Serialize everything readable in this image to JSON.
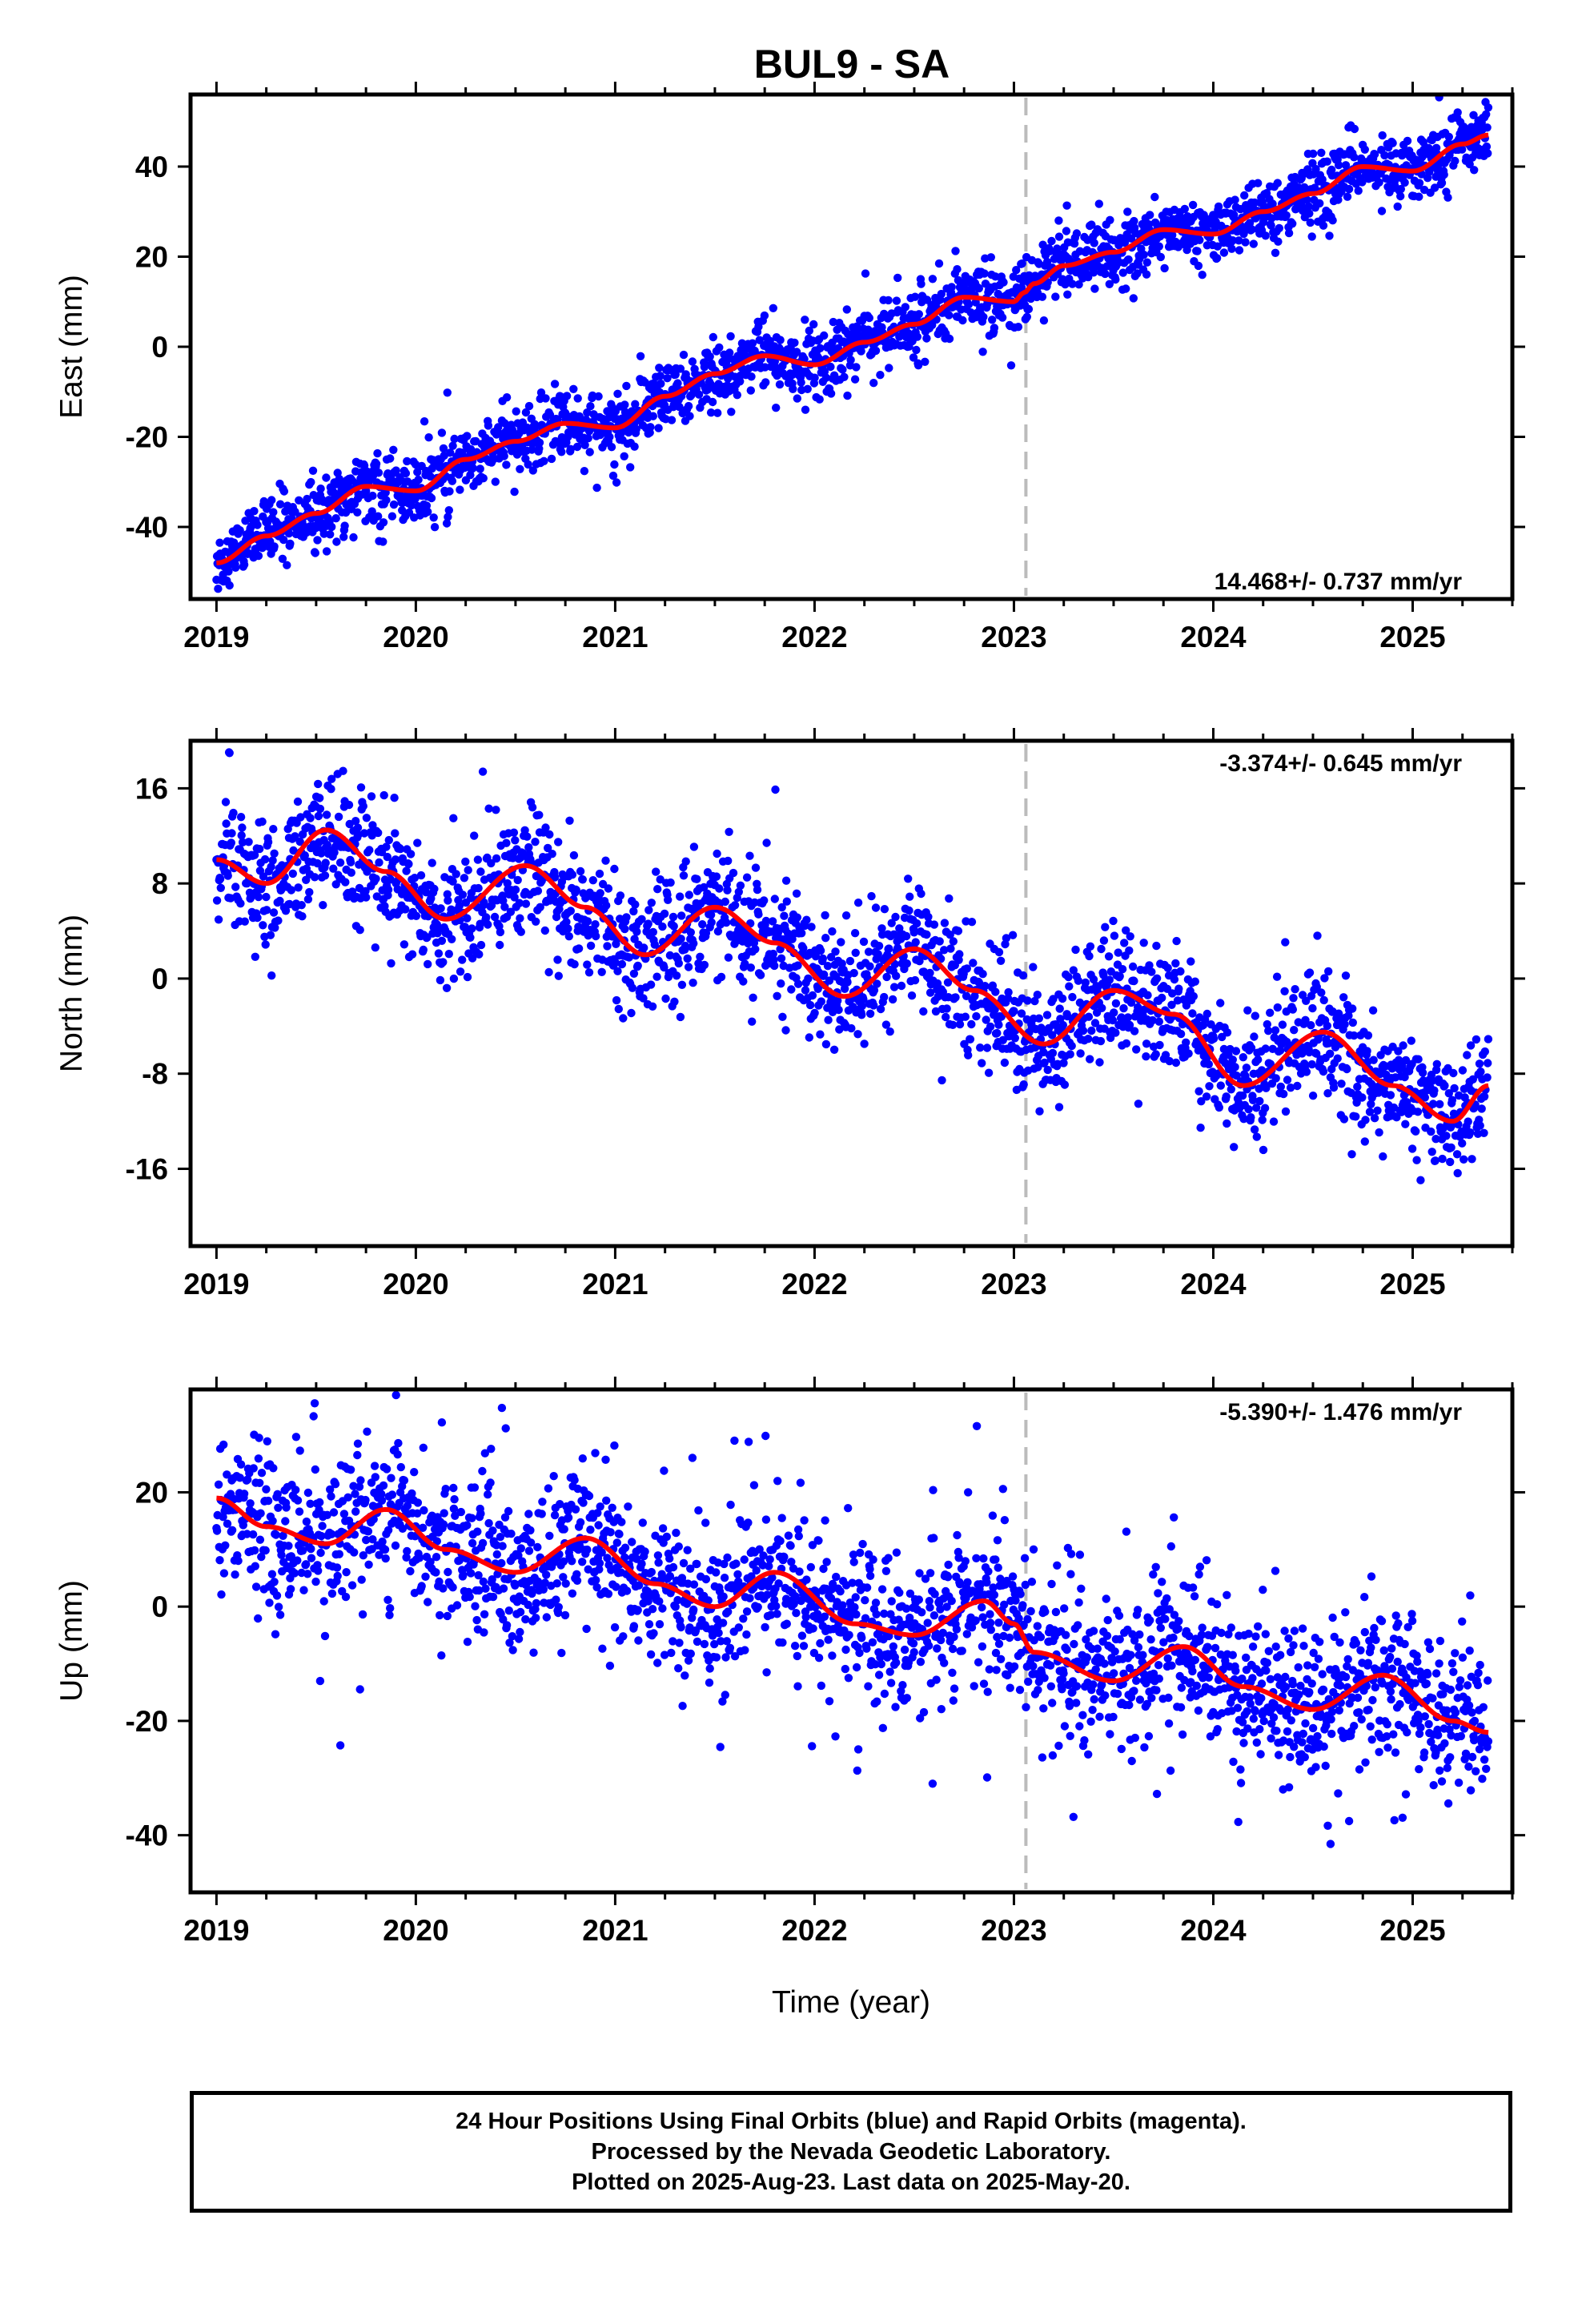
{
  "title": "BUL9 - SA",
  "xlabel": "Time (year)",
  "footer": {
    "line1": "24 Hour Positions Using Final Orbits (blue) and Rapid Orbits (magenta).",
    "line2": "Processed by the Nevada Geodetic Laboratory.",
    "line3": "Plotted on 2025-Aug-23. Last data on 2025-May-20."
  },
  "colors": {
    "points": "#0000ff",
    "fit": "#ff0000",
    "event_line": "#bbbbbb",
    "axes": "#000000"
  },
  "chart_data": [
    {
      "type": "scatter",
      "panel": "east",
      "ylabel": "East (mm)",
      "rate_label": "14.468+/- 0.737 mm/yr",
      "xlim": [
        2018.87,
        2025.5
      ],
      "ylim": [
        -56,
        56
      ],
      "xticks": [
        2019,
        2020,
        2021,
        2022,
        2023,
        2024,
        2025
      ],
      "yticks": [
        -40,
        -20,
        0,
        20,
        40
      ],
      "event_line_x": 2023.06,
      "fit": {
        "x": [
          2019.0,
          2019.25,
          2019.5,
          2019.75,
          2020.0,
          2020.25,
          2020.5,
          2020.75,
          2021.0,
          2021.25,
          2021.5,
          2021.75,
          2022.0,
          2022.25,
          2022.5,
          2022.75,
          2023.0,
          2023.05,
          2023.1,
          2023.25,
          2023.5,
          2023.75,
          2024.0,
          2024.25,
          2024.5,
          2024.75,
          2025.0,
          2025.25,
          2025.38
        ],
        "y": [
          -48,
          -42,
          -37,
          -31,
          -32,
          -25,
          -21,
          -17,
          -18,
          -11,
          -6,
          -2,
          -4,
          1,
          5,
          11,
          10,
          12,
          14,
          18,
          21,
          26,
          25,
          30,
          34,
          40,
          39,
          45,
          47
        ]
      },
      "series": [
        {
          "name": "24 Hour Positions",
          "noise": 3.6,
          "outlier_rate": 0.012,
          "x_range": [
            2019.0,
            2025.38
          ]
        }
      ]
    },
    {
      "type": "scatter",
      "panel": "north",
      "ylabel": "North (mm)",
      "rate_label": "-3.374+/- 0.645 mm/yr",
      "xlim": [
        2018.87,
        2025.5
      ],
      "ylim": [
        -22.5,
        20
      ],
      "xticks": [
        2019,
        2020,
        2021,
        2022,
        2023,
        2024,
        2025
      ],
      "yticks": [
        -16,
        -8,
        0,
        8,
        16
      ],
      "event_line_x": 2023.06,
      "fit": {
        "x": [
          2019.0,
          2019.25,
          2019.55,
          2019.85,
          2020.15,
          2020.55,
          2020.85,
          2021.15,
          2021.5,
          2021.8,
          2022.15,
          2022.5,
          2022.8,
          2023.15,
          2023.5,
          2023.8,
          2024.15,
          2024.55,
          2024.9,
          2025.2,
          2025.38
        ],
        "y": [
          10,
          8,
          12.5,
          9,
          5,
          9.5,
          6,
          2,
          6,
          3,
          -1.5,
          2.5,
          -1,
          -5.5,
          -1,
          -3,
          -9,
          -4.5,
          -9,
          -12,
          -9
        ]
      },
      "series": [
        {
          "name": "24 Hour Positions",
          "noise": 2.6,
          "outlier_rate": 0.012,
          "x_range": [
            2019.0,
            2025.38
          ]
        }
      ]
    },
    {
      "type": "scatter",
      "panel": "up",
      "ylabel": "Up (mm)",
      "rate_label": "-5.390+/- 1.476 mm/yr",
      "xlim": [
        2018.87,
        2025.5
      ],
      "ylim": [
        -50,
        38
      ],
      "xticks": [
        2019,
        2020,
        2021,
        2022,
        2023,
        2024,
        2025
      ],
      "yticks": [
        -40,
        -20,
        0,
        20
      ],
      "event_line_x": 2023.06,
      "fit": {
        "x": [
          2019.0,
          2019.25,
          2019.55,
          2019.85,
          2020.15,
          2020.5,
          2020.85,
          2021.2,
          2021.5,
          2021.8,
          2022.2,
          2022.5,
          2022.85,
          2023.0,
          2023.1,
          2023.5,
          2023.85,
          2024.15,
          2024.5,
          2024.85,
          2025.2,
          2025.38
        ],
        "y": [
          19,
          14,
          11,
          17,
          10,
          6,
          12,
          4,
          0,
          6,
          -3,
          -5,
          1,
          -3,
          -8,
          -13,
          -7,
          -14,
          -18,
          -12,
          -20,
          -22
        ]
      },
      "series": [
        {
          "name": "24 Hour Positions",
          "noise": 6.2,
          "outlier_rate": 0.03,
          "x_range": [
            2019.0,
            2025.38
          ]
        }
      ]
    }
  ]
}
